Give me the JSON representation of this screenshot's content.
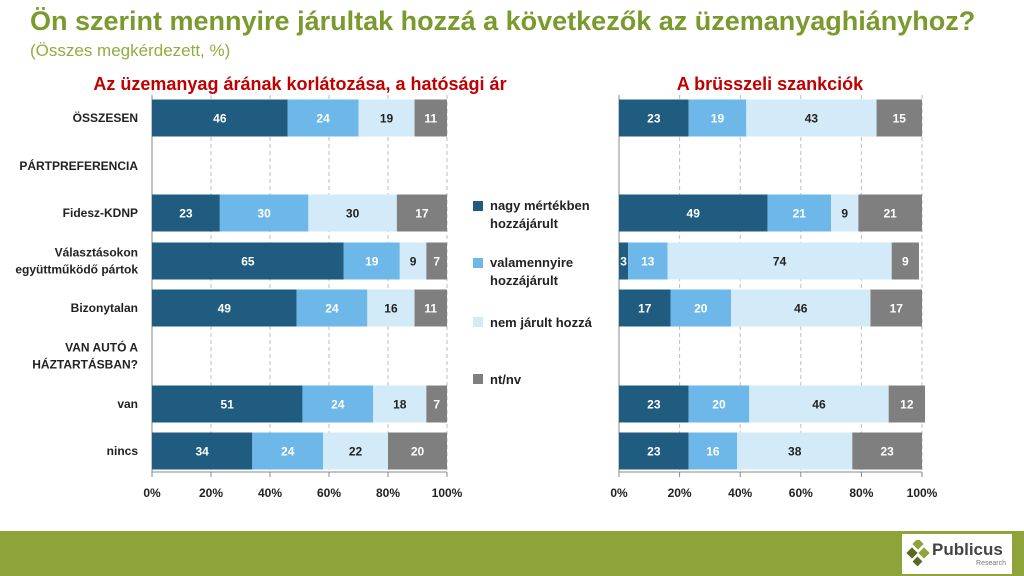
{
  "header": {
    "title": "Ön szerint mennyire járultak hozzá a következők az üzemanyaghiányhoz?",
    "subtitle": "(Összes megkérdezett, %)"
  },
  "row_labels": [
    [
      "ÖSSZESEN"
    ],
    [
      "PÁRTPREFERENCIA"
    ],
    [
      "Fidesz-KDNP"
    ],
    [
      "Választásokon",
      "együttműködő pártok"
    ],
    [
      "Bizonytalan"
    ],
    [
      "VAN AUTÓ A",
      "HÁZTARTÁSBAN?"
    ],
    [
      "van"
    ],
    [
      "nincs"
    ]
  ],
  "chart_data": [
    {
      "type": "bar",
      "orientation": "horizontal",
      "stacked": true,
      "title": "Az üzemanyag árának korlátozása, a hatósági ár",
      "categories": [
        "ÖSSZESEN",
        "PÁRTPREFERENCIA",
        "Fidesz-KDNP",
        "Választásokon együttműködő pártok",
        "Bizonytalan",
        "VAN AUTÓ A HÁZTARTÁSBAN?",
        "van",
        "nincs"
      ],
      "series": [
        {
          "name": "nagy mértékben hozzájárult",
          "values": [
            46,
            null,
            23,
            65,
            49,
            null,
            51,
            34
          ]
        },
        {
          "name": "valamennyire hozzájárult",
          "values": [
            24,
            null,
            30,
            19,
            24,
            null,
            24,
            24
          ]
        },
        {
          "name": "nem járult hozzá",
          "values": [
            19,
            null,
            30,
            9,
            16,
            null,
            18,
            22
          ]
        },
        {
          "name": "nt/nv",
          "values": [
            11,
            null,
            17,
            7,
            11,
            null,
            7,
            20
          ]
        }
      ],
      "xlim": [
        0,
        100
      ],
      "ticks": [
        "0%",
        "20%",
        "40%",
        "60%",
        "80%",
        "100%"
      ],
      "grid": true
    },
    {
      "type": "bar",
      "orientation": "horizontal",
      "stacked": true,
      "title": "A brüsszeli szankciók",
      "categories": [
        "ÖSSZESEN",
        "PÁRTPREFERENCIA",
        "Fidesz-KDNP",
        "Választásokon együttműködő pártok",
        "Bizonytalan",
        "VAN AUTÓ A HÁZTARTÁSBAN?",
        "van",
        "nincs"
      ],
      "series": [
        {
          "name": "nagy mértékben hozzájárult",
          "values": [
            23,
            null,
            49,
            3,
            17,
            null,
            23,
            23
          ]
        },
        {
          "name": "valamennyire hozzájárult",
          "values": [
            19,
            null,
            21,
            13,
            20,
            null,
            20,
            16
          ]
        },
        {
          "name": "nem járult hozzá",
          "values": [
            43,
            null,
            9,
            74,
            46,
            null,
            46,
            38
          ]
        },
        {
          "name": "nt/nv",
          "values": [
            15,
            null,
            21,
            9,
            17,
            null,
            12,
            23
          ]
        }
      ],
      "xlim": [
        0,
        100
      ],
      "ticks": [
        "0%",
        "20%",
        "40%",
        "60%",
        "80%",
        "100%"
      ],
      "grid": true
    }
  ],
  "legend": [
    {
      "lines": [
        "nagy mértékben",
        "hozzájárult"
      ],
      "color": "#1f5c80"
    },
    {
      "lines": [
        "valamennyire",
        "hozzájárult"
      ],
      "color": "#6db8e8"
    },
    {
      "lines": [
        "nem járult hozzá"
      ],
      "color": "#d3ebf9"
    },
    {
      "lines": [
        "nt/nv"
      ],
      "color": "#7f7f7f"
    }
  ],
  "colors": [
    "#1f5c80",
    "#6db8e8",
    "#d3ebf9",
    "#7f7f7f"
  ],
  "label_colors": [
    "#ffffff",
    "#ffffff",
    "#222222",
    "#ffffff"
  ],
  "logo": {
    "name": "Publicus",
    "sub": "Research"
  }
}
